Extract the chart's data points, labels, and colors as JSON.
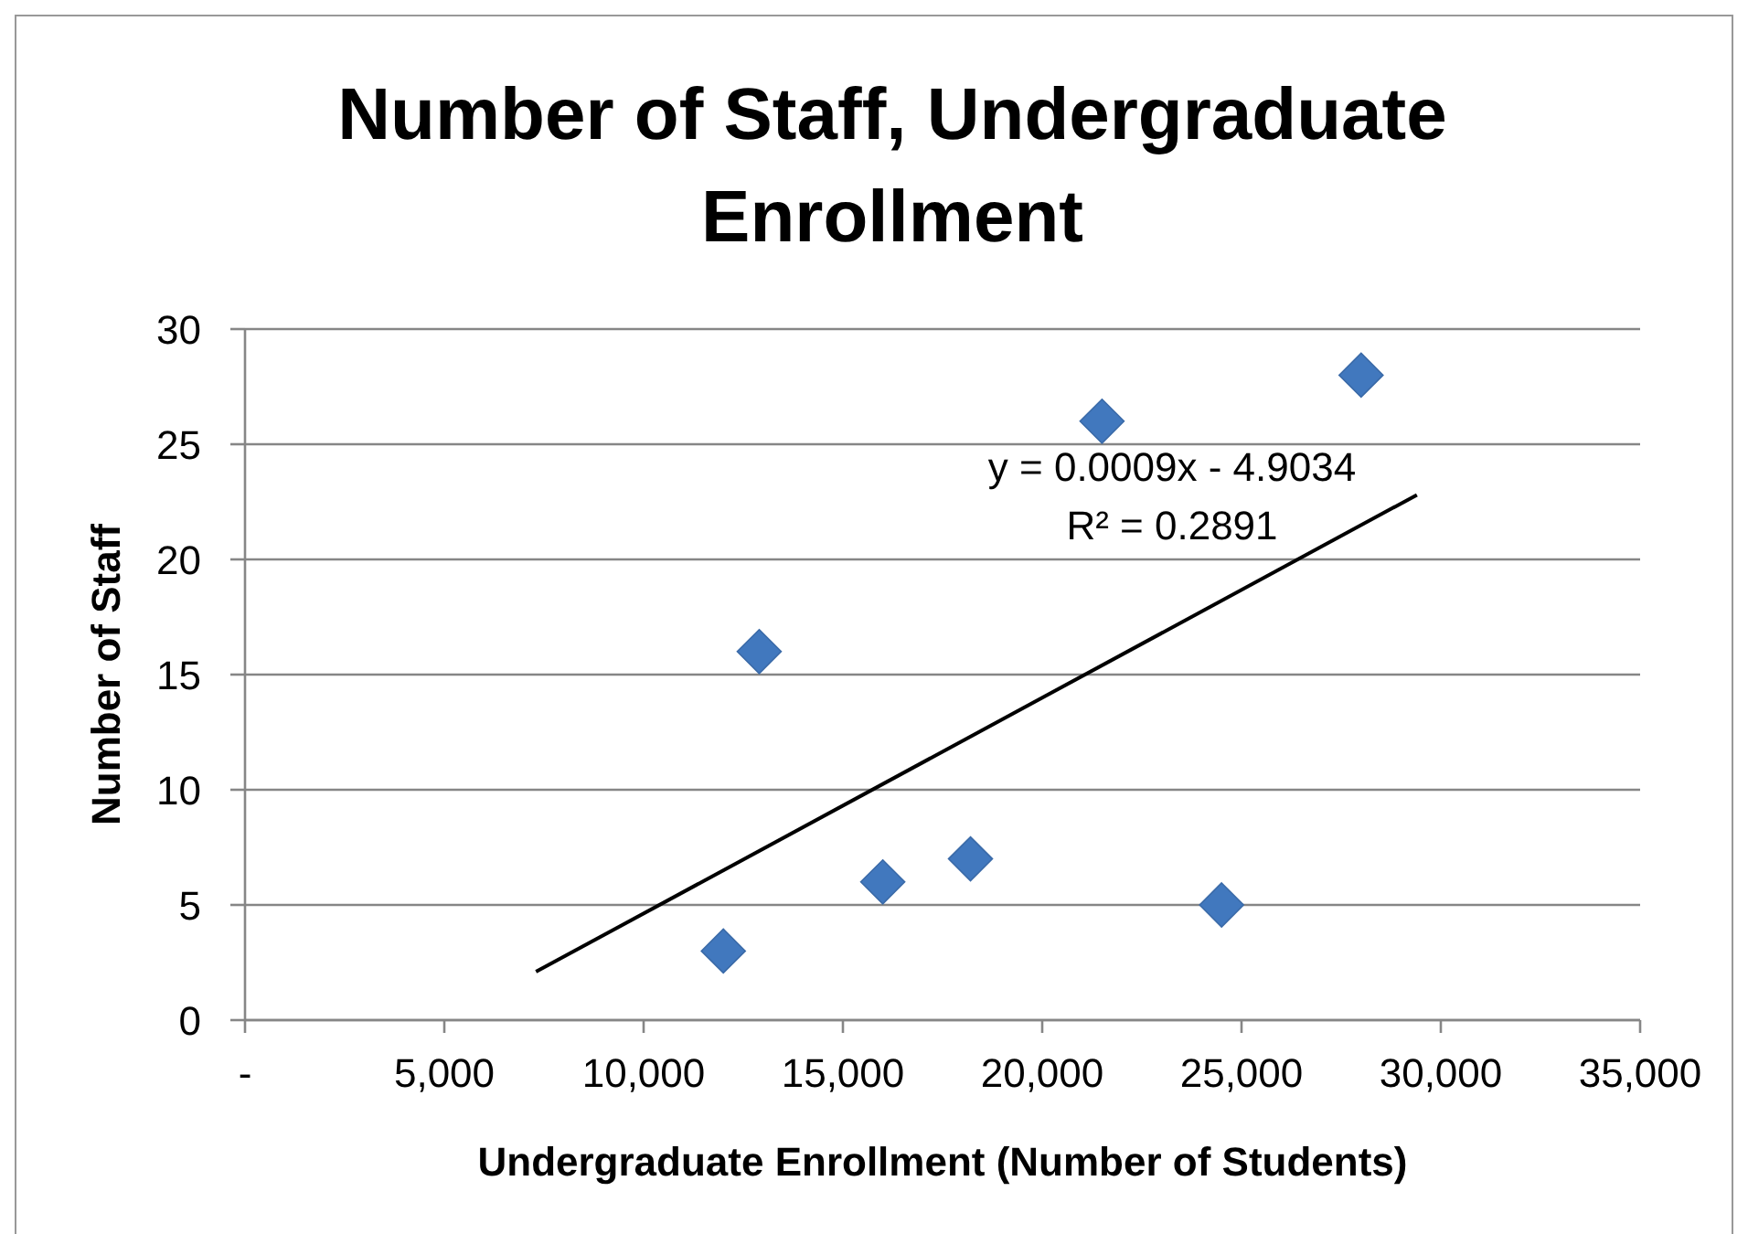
{
  "chart_data": {
    "type": "scatter",
    "title": "Number of Staff, Undergraduate Enrollment",
    "xlabel": "Undergraduate Enrollment (Number of Students)",
    "ylabel": "Number of Staff",
    "annotations": [
      "y = 0.0009x - 4.9034",
      "R² = 0.2891"
    ],
    "series": [
      {
        "color": "#4178be",
        "marker": "diamond",
        "x": [
          12000,
          12900,
          16000,
          18200,
          21500,
          24500,
          28000
        ],
        "values": [
          3,
          16,
          6,
          7,
          26,
          5,
          28
        ]
      },
      {
        "type": "line",
        "color": "#000000",
        "x": [
          7300,
          29400
        ],
        "values": [
          2.1,
          22.8
        ]
      }
    ],
    "xlim": [
      0,
      35000
    ],
    "xticks": [
      {
        "value": 0,
        "label": "-"
      },
      {
        "value": 5000,
        "label": "5,000"
      },
      {
        "value": 10000,
        "label": "10,000"
      },
      {
        "value": 15000,
        "label": "15,000"
      },
      {
        "value": 20000,
        "label": "20,000"
      },
      {
        "value": 25000,
        "label": "25,000"
      },
      {
        "value": 30000,
        "label": "30,000"
      },
      {
        "value": 35000,
        "label": "35,000"
      }
    ],
    "ylim": [
      0,
      30
    ],
    "yticks": [
      0,
      5,
      10,
      15,
      20,
      25,
      30
    ],
    "grid": "y"
  }
}
